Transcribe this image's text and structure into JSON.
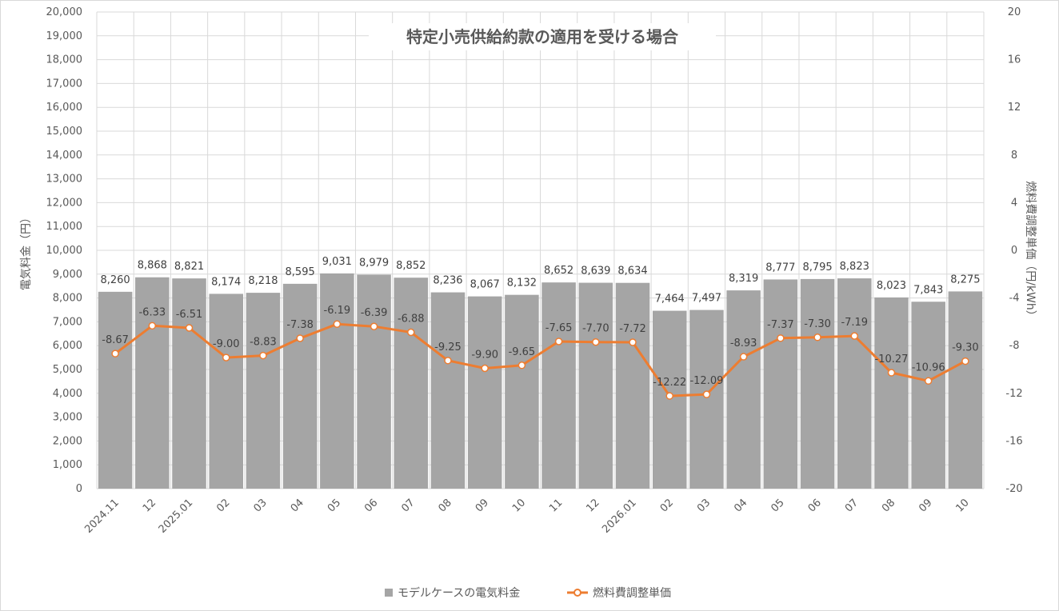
{
  "chart_data": {
    "type": "bar",
    "title": "特定小売供給約款の適用を受ける場合",
    "categories": [
      "2024.11",
      "12",
      "2025.01",
      "02",
      "03",
      "04",
      "05",
      "06",
      "07",
      "08",
      "09",
      "10",
      "11",
      "12",
      "2026.01",
      "02",
      "03",
      "04",
      "05",
      "06",
      "07",
      "08",
      "09",
      "10"
    ],
    "series": [
      {
        "name": "モデルケースの電気料金",
        "type": "bar",
        "axis": "left",
        "color": "#a5a5a5",
        "values": [
          8260,
          8868,
          8821,
          8174,
          8218,
          8595,
          9031,
          8979,
          8852,
          8236,
          8067,
          8132,
          8652,
          8639,
          8634,
          7464,
          7497,
          8319,
          8777,
          8795,
          8823,
          8023,
          7843,
          8275
        ],
        "labels": [
          "8,260",
          "8,868",
          "8,821",
          "8,174",
          "8,218",
          "8,595",
          "9,031",
          "8,979",
          "8,852",
          "8,236",
          "8,067",
          "8,132",
          "8,652",
          "8,639",
          "8,634",
          "7,464",
          "7,497",
          "8,319",
          "8,777",
          "8,795",
          "8,823",
          "8,023",
          "7,843",
          "8,275"
        ]
      },
      {
        "name": "燃料費調整単価",
        "type": "line",
        "axis": "right",
        "color": "#ed7d31",
        "values": [
          -8.67,
          -6.33,
          -6.51,
          -9.0,
          -8.83,
          -7.38,
          -6.19,
          -6.39,
          -6.88,
          -9.25,
          -9.9,
          -9.65,
          -7.65,
          -7.7,
          -7.72,
          -12.22,
          -12.09,
          -8.93,
          -7.37,
          -7.3,
          -7.19,
          -10.27,
          -10.96,
          -9.3
        ],
        "labels": [
          "-8.67",
          "-6.33",
          "-6.51",
          "-9.00",
          "-8.83",
          "-7.38",
          "-6.19",
          "-6.39",
          "-6.88",
          "-9.25",
          "-9.90",
          "-9.65",
          "-7.65",
          "-7.70",
          "-7.72",
          "-12.22",
          "-12.09",
          "-8.93",
          "-7.37",
          "-7.30",
          "-7.19",
          "-10.27",
          "-10.96",
          "-9.30"
        ]
      }
    ],
    "y_left": {
      "label": "電気料金（円）",
      "min": 0,
      "max": 20000,
      "step": 1000,
      "tick_labels": [
        "0",
        "1,000",
        "2,000",
        "3,000",
        "4,000",
        "5,000",
        "6,000",
        "7,000",
        "8,000",
        "9,000",
        "10,000",
        "11,000",
        "12,000",
        "13,000",
        "14,000",
        "15,000",
        "16,000",
        "17,000",
        "18,000",
        "19,000",
        "20,000"
      ]
    },
    "y_right": {
      "label": "燃料費調整単価（円/kWh）",
      "min": -20,
      "max": 20,
      "step": 4,
      "tick_labels": [
        "-20",
        "-16",
        "-12",
        "-8",
        "-4",
        "0",
        "4",
        "8",
        "12",
        "16",
        "20"
      ]
    },
    "grid": true,
    "legend": {
      "position": "bottom",
      "items": [
        "モデルケースの電気料金",
        "燃料費調整単価"
      ]
    }
  }
}
